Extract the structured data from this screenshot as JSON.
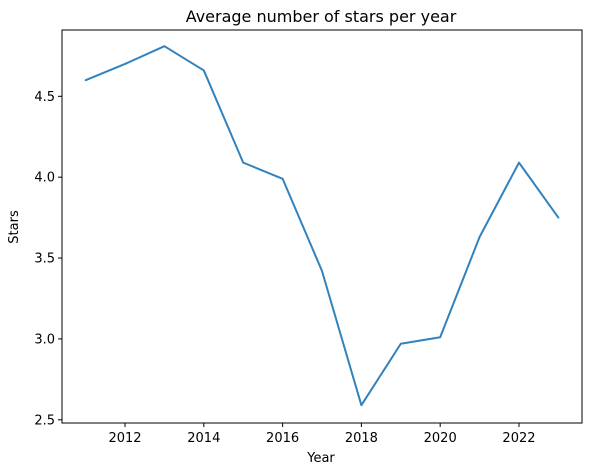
{
  "chart_data": {
    "type": "line",
    "title": "Average number of stars per year",
    "xlabel": "Year",
    "ylabel": "Stars",
    "xlim": [
      2010.4,
      2023.6
    ],
    "ylim": [
      2.48,
      4.91
    ],
    "grid": false,
    "x_ticks": [
      2012,
      2014,
      2016,
      2018,
      2020,
      2022
    ],
    "y_ticks": [
      2.5,
      3.0,
      3.5,
      4.0,
      4.5
    ],
    "series": [
      {
        "color": "#3182bd",
        "x": [
          2011,
          2012,
          2013,
          2014,
          2015,
          2016,
          2017,
          2018,
          2019,
          2020,
          2021,
          2022,
          2023
        ],
        "values": [
          4.6,
          4.7,
          4.81,
          4.66,
          4.09,
          3.99,
          3.42,
          2.59,
          2.97,
          3.01,
          3.63,
          4.09,
          3.75
        ]
      }
    ]
  }
}
